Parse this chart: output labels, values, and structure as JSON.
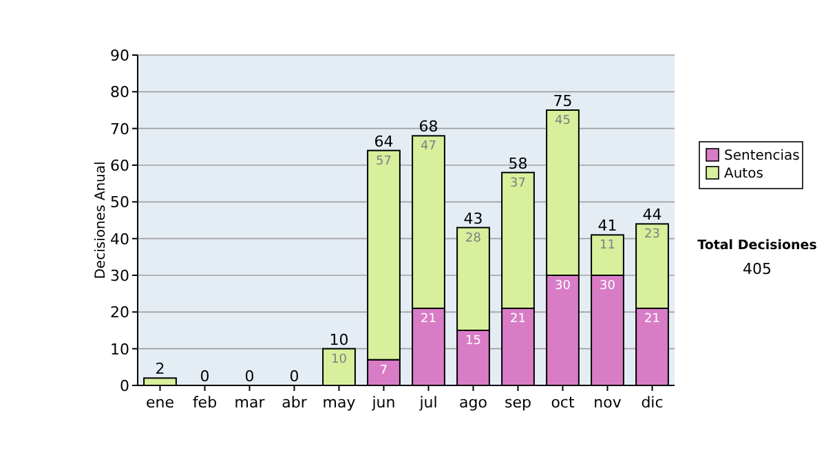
{
  "chart_data": {
    "type": "bar",
    "stacked": true,
    "ylabel": "Decisiones Anual",
    "categories": [
      "ene",
      "feb",
      "mar",
      "abr",
      "may",
      "jun",
      "jul",
      "ago",
      "sep",
      "oct",
      "nov",
      "dic"
    ],
    "series": [
      {
        "name": "Sentencias",
        "color": "#d97cc6",
        "values": [
          0,
          0,
          0,
          0,
          0,
          7,
          21,
          15,
          21,
          30,
          30,
          21
        ],
        "value_labels": [
          null,
          null,
          null,
          null,
          null,
          "7",
          "21",
          "15",
          "21",
          "30",
          "30",
          "21"
        ]
      },
      {
        "name": "Autos",
        "color": "#d8ef9c",
        "values": [
          2,
          0,
          0,
          0,
          10,
          57,
          47,
          28,
          37,
          45,
          11,
          23
        ],
        "value_labels": [
          null,
          null,
          null,
          null,
          "10",
          "57",
          "47",
          "28",
          "37",
          "45",
          "11",
          "23"
        ]
      }
    ],
    "totals": [
      "2",
      "0",
      "0",
      "0",
      "10",
      "64",
      "68",
      "43",
      "58",
      "75",
      "41",
      "44"
    ],
    "ylim": [
      0,
      90
    ],
    "yticks": [
      0,
      10,
      20,
      30,
      40,
      50,
      60,
      70,
      80,
      90
    ],
    "grid": "y",
    "legend": "right",
    "annotations": [
      "Total Decisiones",
      "405"
    ]
  }
}
